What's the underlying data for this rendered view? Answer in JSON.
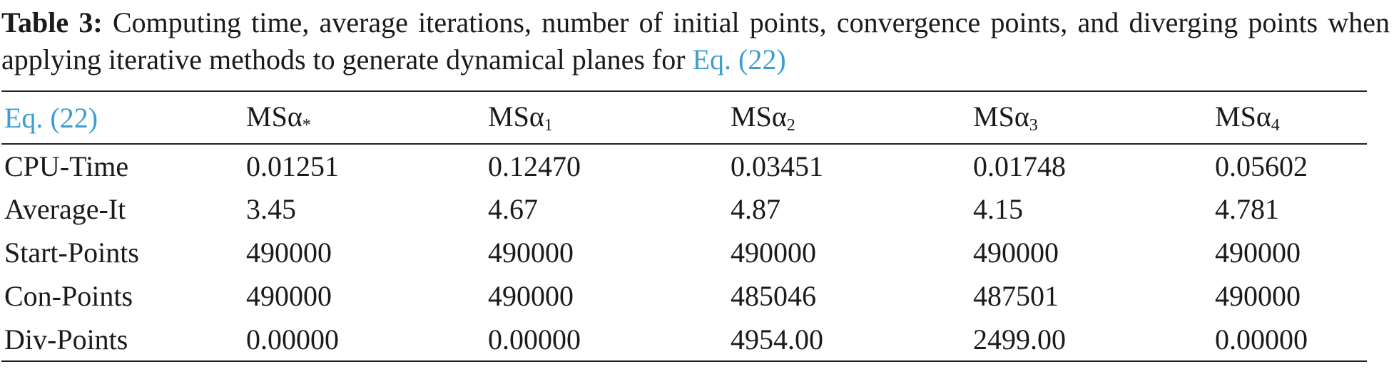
{
  "caption": {
    "label": "Table 3:",
    "text": "Computing time, average iterations, number of initial points, convergence points, and diverging points when applying iterative methods to generate dynamical planes for",
    "link": "Eq. (22)"
  },
  "table": {
    "header": [
      "Eq. (22)",
      {
        "base": "MSα",
        "sub": "*"
      },
      {
        "base": "MSα",
        "sub": "1"
      },
      {
        "base": "MSα",
        "sub": "2"
      },
      {
        "base": "MSα",
        "sub": "3"
      },
      {
        "base": "MSα",
        "sub": "4"
      }
    ],
    "rows": [
      [
        "CPU-Time",
        "0.01251",
        "0.12470",
        "0.03451",
        "0.01748",
        "0.05602"
      ],
      [
        "Average-It",
        "3.45",
        "4.67",
        "4.87",
        "4.15",
        "4.781"
      ],
      [
        "Start-Points",
        "490000",
        "490000",
        "490000",
        "490000",
        "490000"
      ],
      [
        "Con-Points",
        "490000",
        "490000",
        "485046",
        "487501",
        "490000"
      ],
      [
        "Div-Points",
        "0.00000",
        "0.00000",
        "4954.00",
        "2499.00",
        "0.00000"
      ]
    ]
  }
}
